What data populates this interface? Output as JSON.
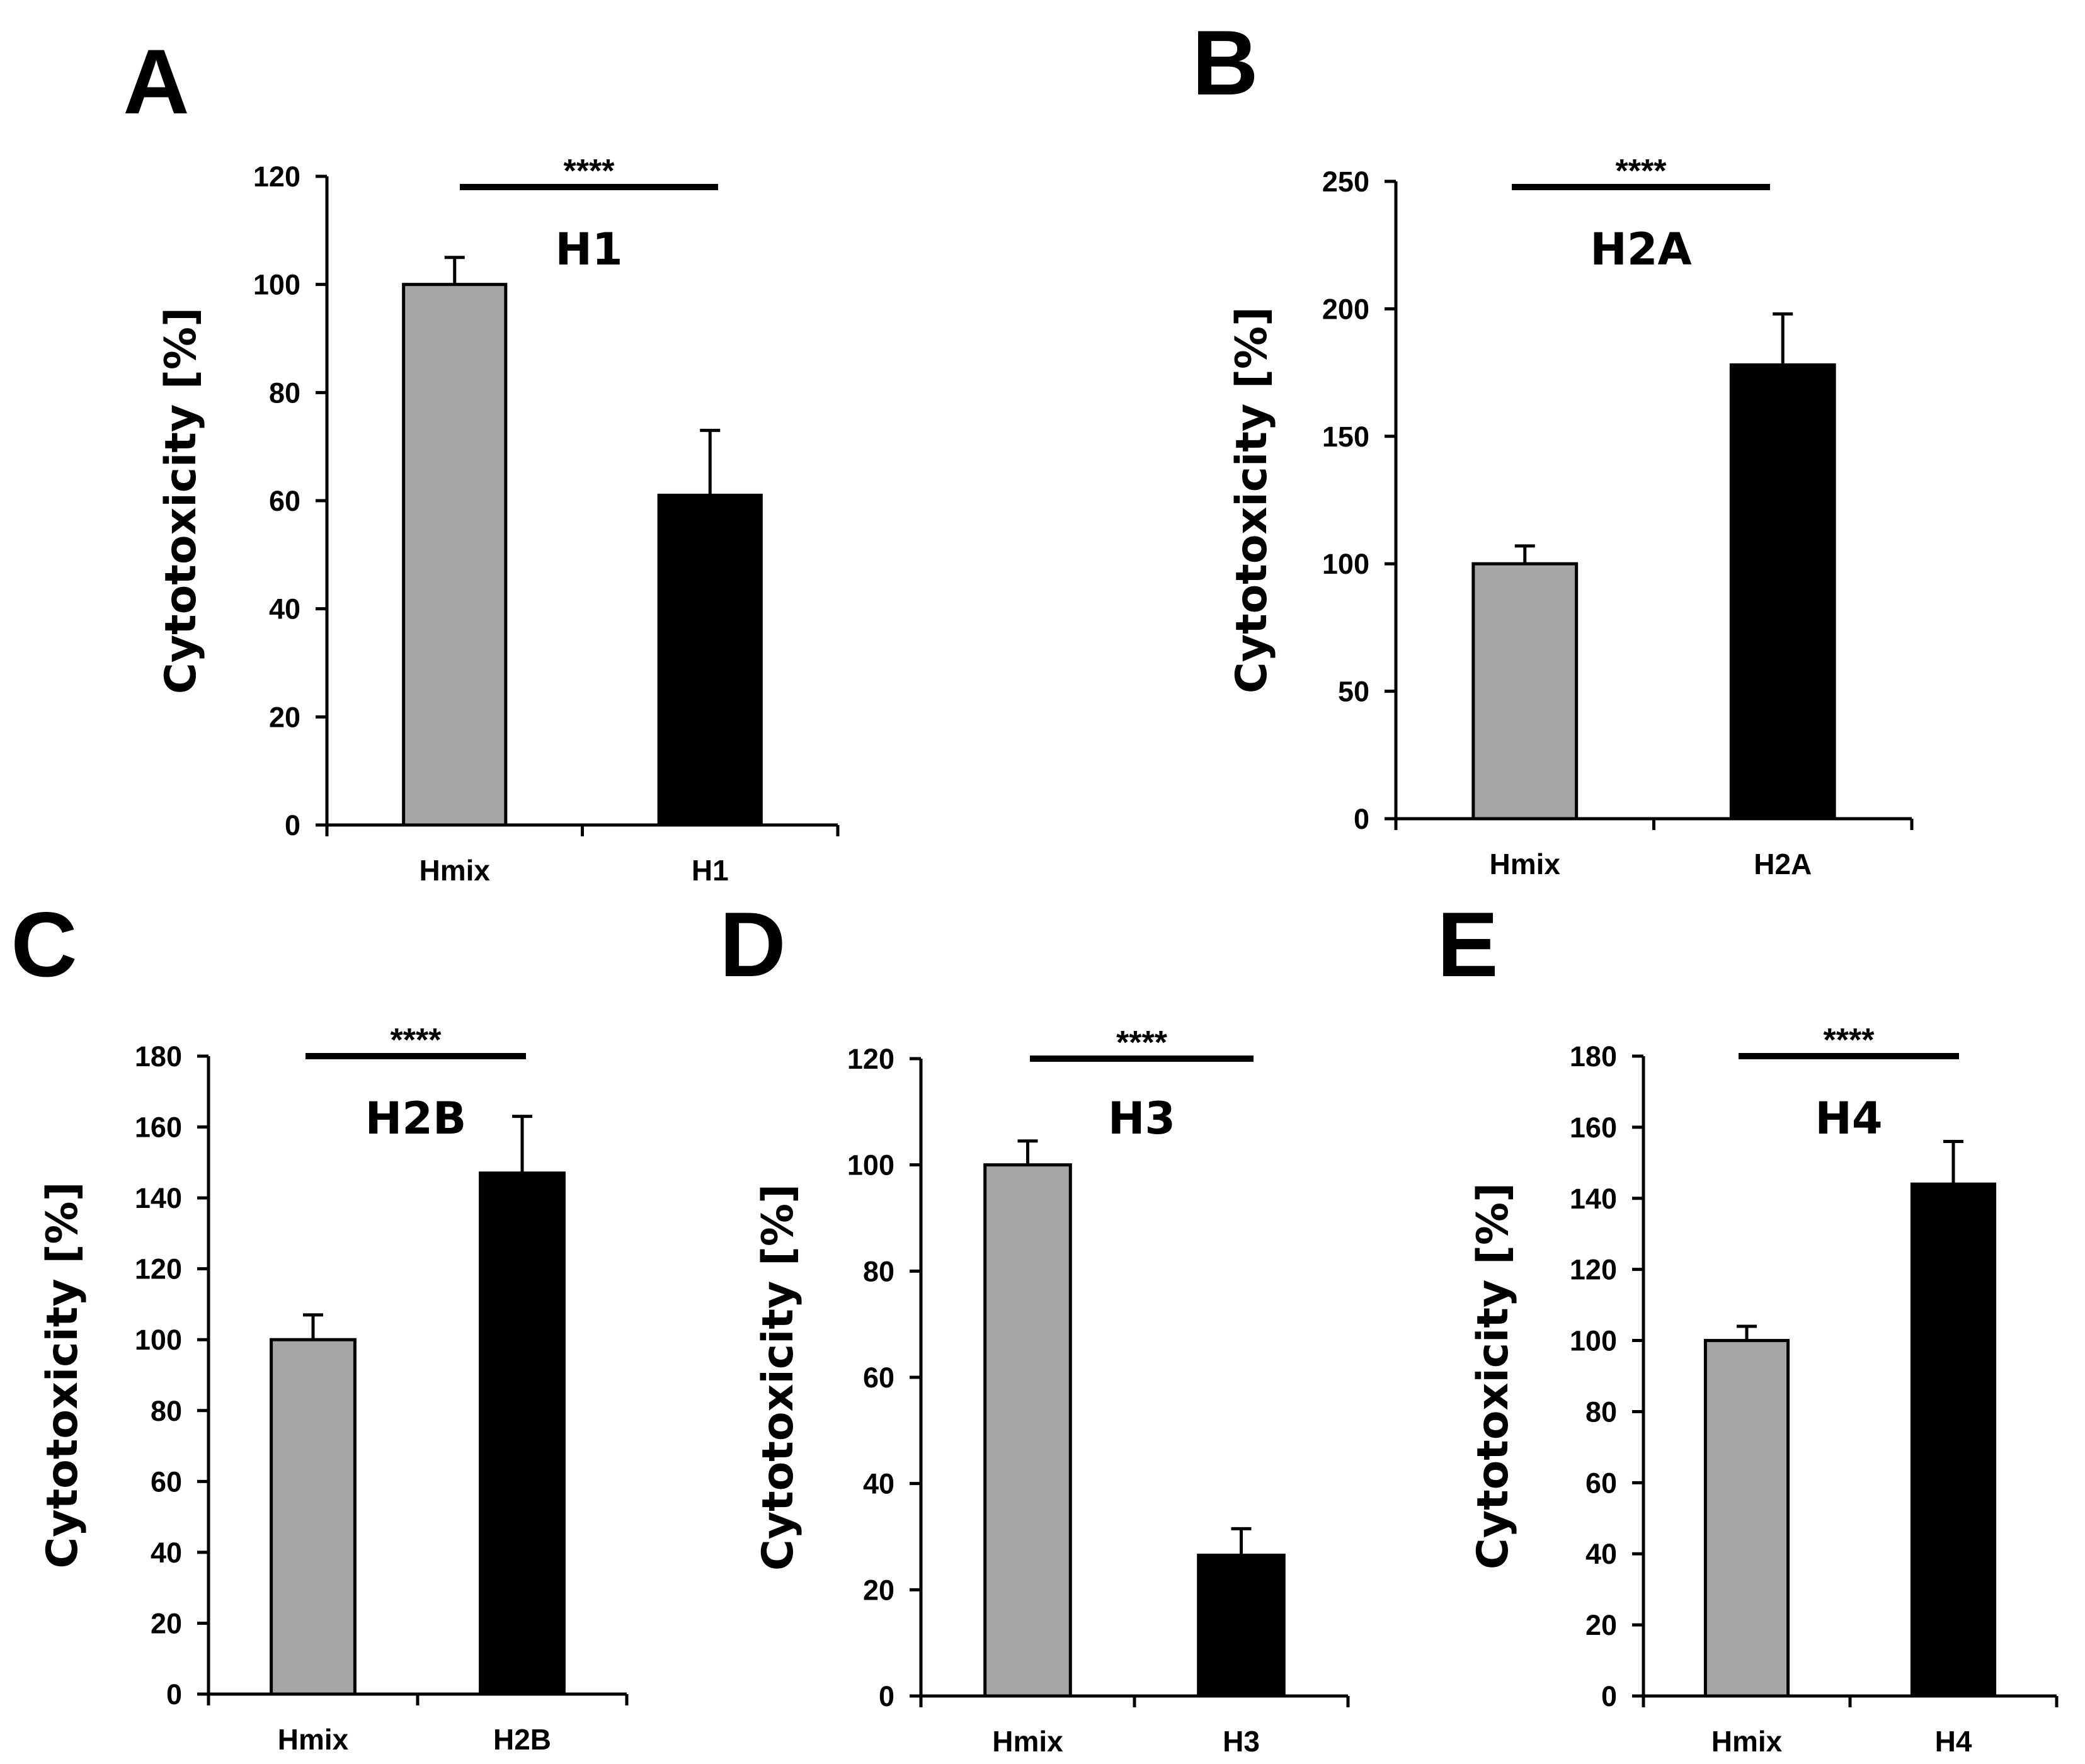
{
  "chart_data": [
    {
      "panel": "A",
      "type": "bar",
      "title": "H1",
      "ylabel": "Cytotoxicity [%]",
      "xlabel": "",
      "ylim": [
        0,
        120
      ],
      "yticks": [
        0,
        20,
        40,
        60,
        80,
        100,
        120
      ],
      "categories": [
        "Hmix",
        "H1"
      ],
      "values": [
        100,
        61
      ],
      "errors": [
        5,
        12
      ],
      "colors": [
        "#a6a6a6",
        "#000000"
      ],
      "significance": "****"
    },
    {
      "panel": "B",
      "type": "bar",
      "title": "H2A",
      "ylabel": "Cytotoxicity [%]",
      "xlabel": "",
      "ylim": [
        0,
        250
      ],
      "yticks": [
        0,
        50,
        100,
        150,
        200,
        250
      ],
      "categories": [
        "Hmix",
        "H2A"
      ],
      "values": [
        100,
        178
      ],
      "errors": [
        7,
        20
      ],
      "colors": [
        "#a6a6a6",
        "#000000"
      ],
      "significance": "****"
    },
    {
      "panel": "C",
      "type": "bar",
      "title": "H2B",
      "ylabel": "Cytotoxicity [%]",
      "xlabel": "",
      "ylim": [
        0,
        180
      ],
      "yticks": [
        0,
        20,
        40,
        60,
        80,
        100,
        120,
        140,
        160,
        180
      ],
      "categories": [
        "Hmix",
        "H2B"
      ],
      "values": [
        100,
        147
      ],
      "errors": [
        7,
        16
      ],
      "colors": [
        "#a6a6a6",
        "#000000"
      ],
      "significance": "****"
    },
    {
      "panel": "D",
      "type": "bar",
      "title": "H3",
      "ylabel": "Cytotoxicity [%]",
      "xlabel": "",
      "ylim": [
        0,
        120
      ],
      "yticks": [
        0,
        20,
        40,
        60,
        80,
        100,
        120
      ],
      "categories": [
        "Hmix",
        "H3"
      ],
      "values": [
        100,
        26.5
      ],
      "errors": [
        4.5,
        5
      ],
      "colors": [
        "#a6a6a6",
        "#000000"
      ],
      "significance": "****"
    },
    {
      "panel": "E",
      "type": "bar",
      "title": "H4",
      "ylabel": "Cytotoxicity [%]",
      "xlabel": "",
      "ylim": [
        0,
        180
      ],
      "yticks": [
        0,
        20,
        40,
        60,
        80,
        100,
        120,
        140,
        160,
        180
      ],
      "categories": [
        "Hmix",
        "H4"
      ],
      "values": [
        100,
        144
      ],
      "errors": [
        4,
        12
      ],
      "colors": [
        "#a6a6a6",
        "#000000"
      ],
      "significance": "****"
    }
  ]
}
